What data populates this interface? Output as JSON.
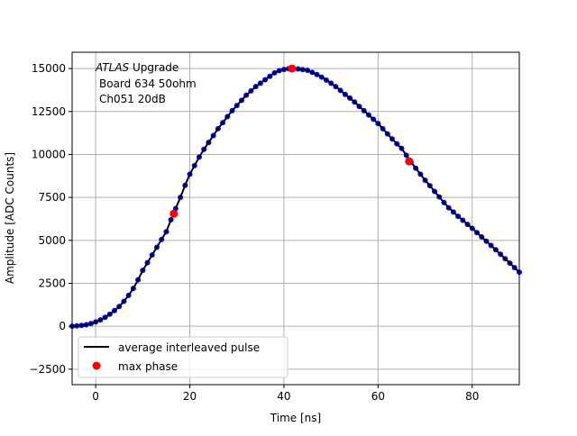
{
  "chart_data": {
    "type": "line",
    "title": "",
    "xlabel": "Time [ns]",
    "ylabel": "Amplitude [ADC Counts]",
    "xlim": [
      -5,
      90
    ],
    "ylim": [
      -3400,
      15950
    ],
    "xticks": [
      0,
      20,
      40,
      60,
      80
    ],
    "yticks": [
      -2500,
      0,
      2500,
      5000,
      7500,
      10000,
      12500,
      15000
    ],
    "grid": true,
    "legend_placement": "lower-left",
    "annotation": {
      "italic": "ATLAS",
      "line1": " Upgrade",
      "line2": "Board 634 50ohm",
      "line3": "Ch051 20dB"
    },
    "series": [
      {
        "name": "average interleaved pulse",
        "color": "#000000",
        "marker_color": "#0000ff",
        "x": [
          -5,
          -4,
          -3,
          -2,
          -1,
          0,
          1,
          2,
          3,
          4,
          5,
          6,
          7,
          8,
          9,
          10,
          11,
          12,
          13,
          14,
          15,
          16,
          17,
          18,
          19,
          20,
          21,
          22,
          23,
          24,
          25,
          26,
          27,
          28,
          29,
          30,
          31,
          32,
          33,
          34,
          35,
          36,
          37,
          38,
          39,
          40,
          41,
          42,
          43,
          44,
          45,
          46,
          47,
          48,
          49,
          50,
          51,
          52,
          53,
          54,
          55,
          56,
          57,
          58,
          59,
          60,
          61,
          62,
          63,
          64,
          65,
          66,
          67,
          68,
          69,
          70,
          71,
          72,
          73,
          74,
          75,
          76,
          77,
          78,
          79,
          80,
          81,
          82,
          83,
          84,
          85,
          86,
          87,
          88,
          89,
          90
        ],
        "y": [
          0,
          20,
          50,
          90,
          160,
          250,
          370,
          520,
          700,
          910,
          1150,
          1450,
          1800,
          2200,
          2700,
          3250,
          3700,
          4150,
          4600,
          5050,
          5500,
          6200,
          6850,
          7500,
          8200,
          8850,
          9350,
          9850,
          10300,
          10700,
          11100,
          11500,
          11850,
          12200,
          12550,
          12850,
          13150,
          13450,
          13700,
          13950,
          14150,
          14350,
          14550,
          14750,
          14880,
          14950,
          14990,
          15000,
          14980,
          14940,
          14900,
          14780,
          14650,
          14500,
          14330,
          14150,
          13950,
          13730,
          13500,
          13280,
          13050,
          12800,
          12550,
          12300,
          12050,
          11800,
          11500,
          11200,
          10900,
          10620,
          10350,
          9950,
          9550,
          9200,
          8850,
          8500,
          8180,
          7850,
          7530,
          7200,
          6900,
          6650,
          6400,
          6170,
          5930,
          5700,
          5450,
          5200,
          4950,
          4700,
          4450,
          4190,
          3930,
          3670,
          3410,
          3150
        ]
      },
      {
        "name": "max phase",
        "color": "#ff0000",
        "x": [
          16.6,
          41.7,
          66.6
        ],
        "y": [
          6550,
          15000,
          9600
        ]
      }
    ]
  }
}
